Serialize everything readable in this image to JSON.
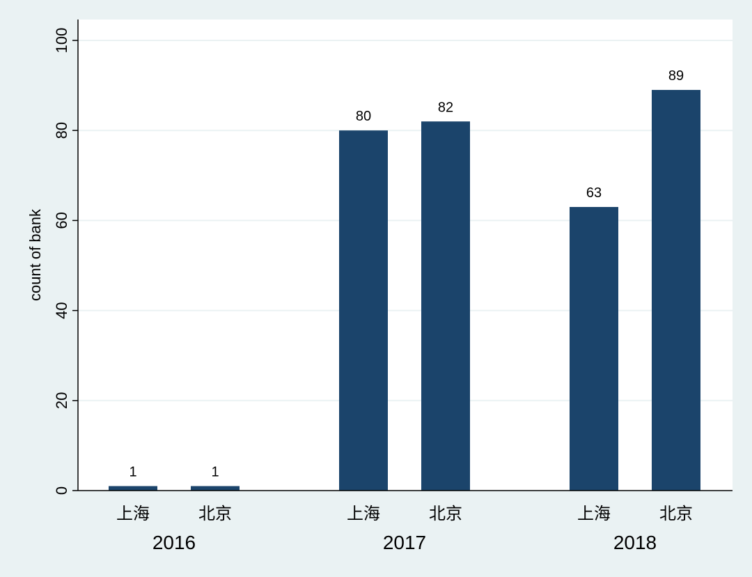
{
  "chart_data": {
    "type": "bar",
    "title": "",
    "xlabel": "",
    "ylabel": "count of bank",
    "ylim": [
      0,
      100
    ],
    "yticks": [
      0,
      20,
      40,
      60,
      80,
      100
    ],
    "grid": true,
    "groups": [
      {
        "label": "2016",
        "bars": [
          {
            "category": "上海",
            "value": 1
          },
          {
            "category": "北京",
            "value": 1
          }
        ]
      },
      {
        "label": "2017",
        "bars": [
          {
            "category": "上海",
            "value": 80
          },
          {
            "category": "北京",
            "value": 82
          }
        ]
      },
      {
        "label": "2018",
        "bars": [
          {
            "category": "上海",
            "value": 63
          },
          {
            "category": "北京",
            "value": 89
          }
        ]
      }
    ],
    "colors": {
      "bar": "#1b446b",
      "plot_background": "#ffffff",
      "page_background": "#eaf2f3",
      "grid": "#eaf2f3"
    }
  }
}
